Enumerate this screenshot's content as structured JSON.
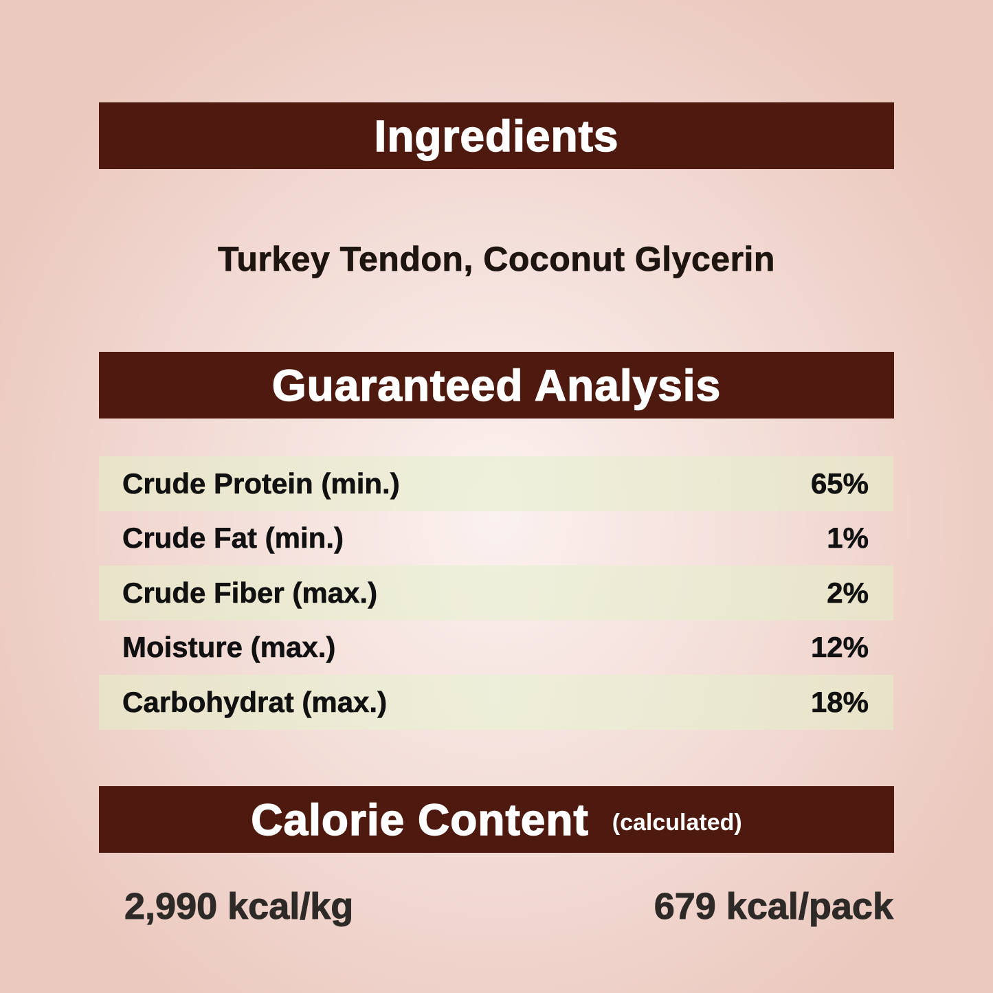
{
  "ingredients": {
    "header": "Ingredients",
    "text": "Turkey Tendon, Coconut Glycerin"
  },
  "analysis": {
    "header": "Guaranteed Analysis",
    "rows": [
      {
        "label": "Crude Protein (min.)",
        "value": "65%"
      },
      {
        "label": "Crude Fat (min.)",
        "value": "1%"
      },
      {
        "label": "Crude Fiber (max.)",
        "value": "2%"
      },
      {
        "label": "Moisture (max.)",
        "value": "12%"
      },
      {
        "label": "Carbohydrat (max.)",
        "value": "18%"
      }
    ]
  },
  "calorie": {
    "header": "Calorie Content",
    "header_note": "(calculated)",
    "per_kg": "2,990 kcal/kg",
    "per_pack": "679 kcal/pack"
  },
  "colors": {
    "header_bar": "#4e1a0f",
    "background": "#f3dcd6",
    "row_tint": "#e8eacb"
  }
}
